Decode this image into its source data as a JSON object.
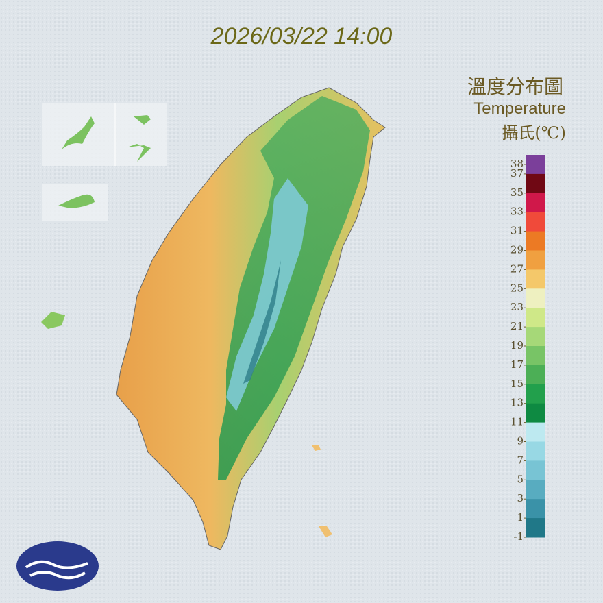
{
  "header": {
    "timestamp": "2026/03/22 14:00"
  },
  "legend": {
    "title": "溫度分布圖",
    "subtitle": "Temperature",
    "unit": "攝氏(℃)",
    "range": [
      -1,
      39
    ],
    "ticks": [
      38,
      37,
      35,
      33,
      31,
      29,
      27,
      25,
      23,
      21,
      19,
      17,
      15,
      13,
      11,
      9,
      7,
      5,
      3,
      1,
      -1
    ],
    "colors": [
      "#7b3f9a",
      "#700814",
      "#d0184a",
      "#f04a3a",
      "#ec7a24",
      "#f0a040",
      "#f4c86a",
      "#eef0c0",
      "#cfe888",
      "#a6d878",
      "#78c466",
      "#4caf56",
      "#22a04c",
      "#0e8a42",
      "#bde9f0",
      "#98d8e4",
      "#78c4d4",
      "#58acc0",
      "#3a92a8",
      "#207888"
    ]
  }
}
